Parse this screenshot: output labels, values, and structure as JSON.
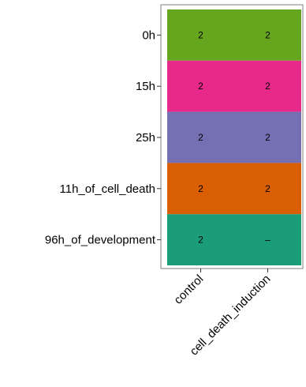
{
  "chart_data": {
    "type": "heatmap",
    "title": "",
    "xlabel": "",
    "ylabel": "",
    "x_categories": [
      "control",
      "cell_death_induction"
    ],
    "y_categories": [
      "0h",
      "15h",
      "25h",
      "11h_of_cell_death",
      "96h_of_development"
    ],
    "row_colors": [
      "#66a61e",
      "#e7298a",
      "#7570b3",
      "#d95f02",
      "#1b9e77"
    ],
    "cells": [
      [
        "2",
        "2"
      ],
      [
        "2",
        "2"
      ],
      [
        "2",
        "2"
      ],
      [
        "2",
        "2"
      ],
      [
        "2",
        "–"
      ]
    ],
    "panel_border_color": "#7f7f7f",
    "grid": false,
    "legend": "none"
  }
}
